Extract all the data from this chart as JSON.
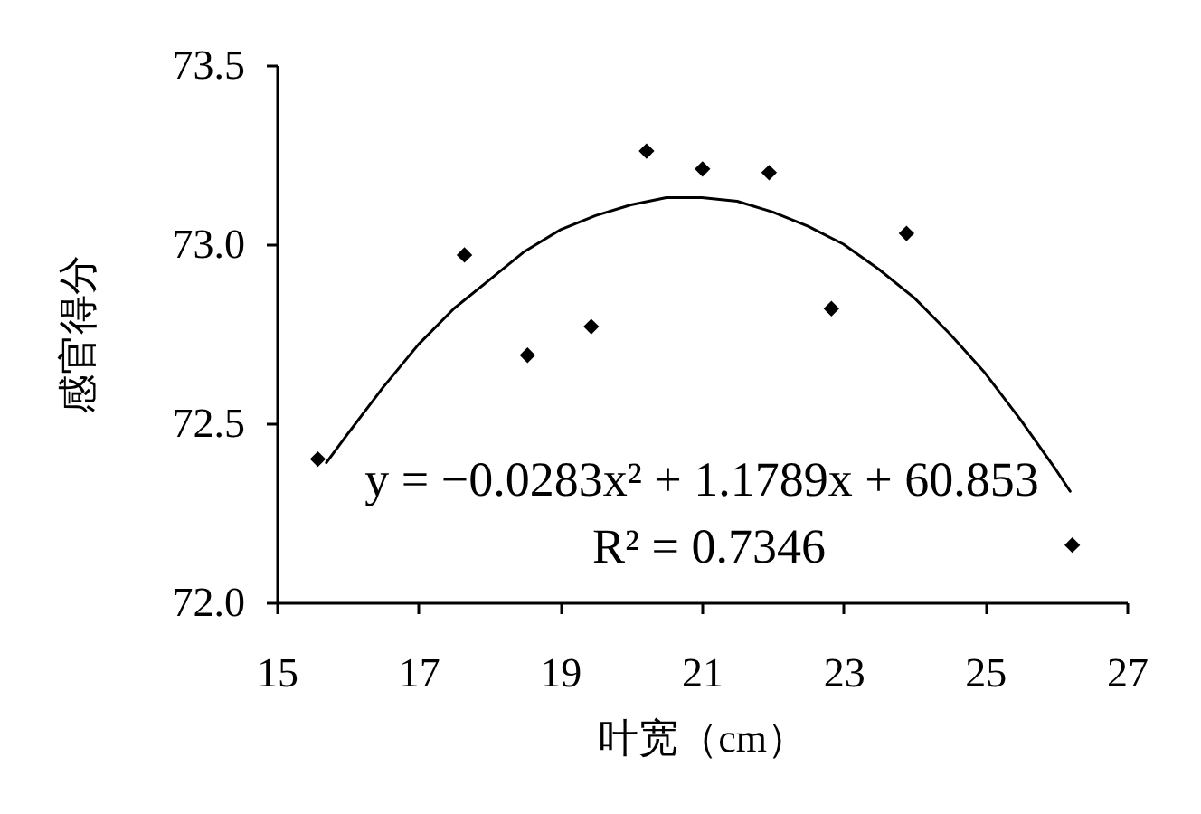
{
  "chart_data": {
    "type": "scatter",
    "xlabel": "叶宽（cm）",
    "ylabel": "感官得分",
    "xlim": [
      15,
      27
    ],
    "xticks": [
      15,
      17,
      19,
      21,
      23,
      25,
      27
    ],
    "ylim": [
      72.0,
      73.5
    ],
    "yticks": [
      {
        "value": 72,
        "label": "72.0"
      },
      72.5,
      {
        "value": 73,
        "label": "73.0"
      },
      73.5
    ],
    "grid": false,
    "legend": false,
    "marker": "diamond",
    "annotations": [
      "y = −0.0283x² + 1.1789x + 60.853",
      "R² = 0.7346"
    ],
    "series": [
      {
        "color": "#000000",
        "x": [
          15.58,
          17.65,
          18.54,
          19.44,
          20.22,
          21.01,
          21.95,
          22.83,
          23.89,
          26.23
        ],
        "values": [
          72.4,
          72.97,
          72.69,
          72.77,
          73.26,
          73.21,
          73.2,
          72.82,
          73.03,
          72.16
        ]
      },
      {
        "type": "line",
        "color": "#000000",
        "marker": "none",
        "line_style": "solid",
        "x": [
          15.7,
          16,
          16.5,
          17,
          17.5,
          18,
          18.5,
          19,
          19.5,
          20,
          20.5,
          21,
          21.5,
          22,
          22.5,
          23,
          23.5,
          24,
          24.5,
          25,
          25.5,
          26,
          26.2
        ],
        "values": [
          72.39,
          72.47,
          72.6,
          72.72,
          72.82,
          72.9,
          72.98,
          73.04,
          73.08,
          73.11,
          73.13,
          73.13,
          73.12,
          73.09,
          73.05,
          73.0,
          72.93,
          72.85,
          72.75,
          72.64,
          72.51,
          72.37,
          72.31
        ]
      }
    ]
  }
}
